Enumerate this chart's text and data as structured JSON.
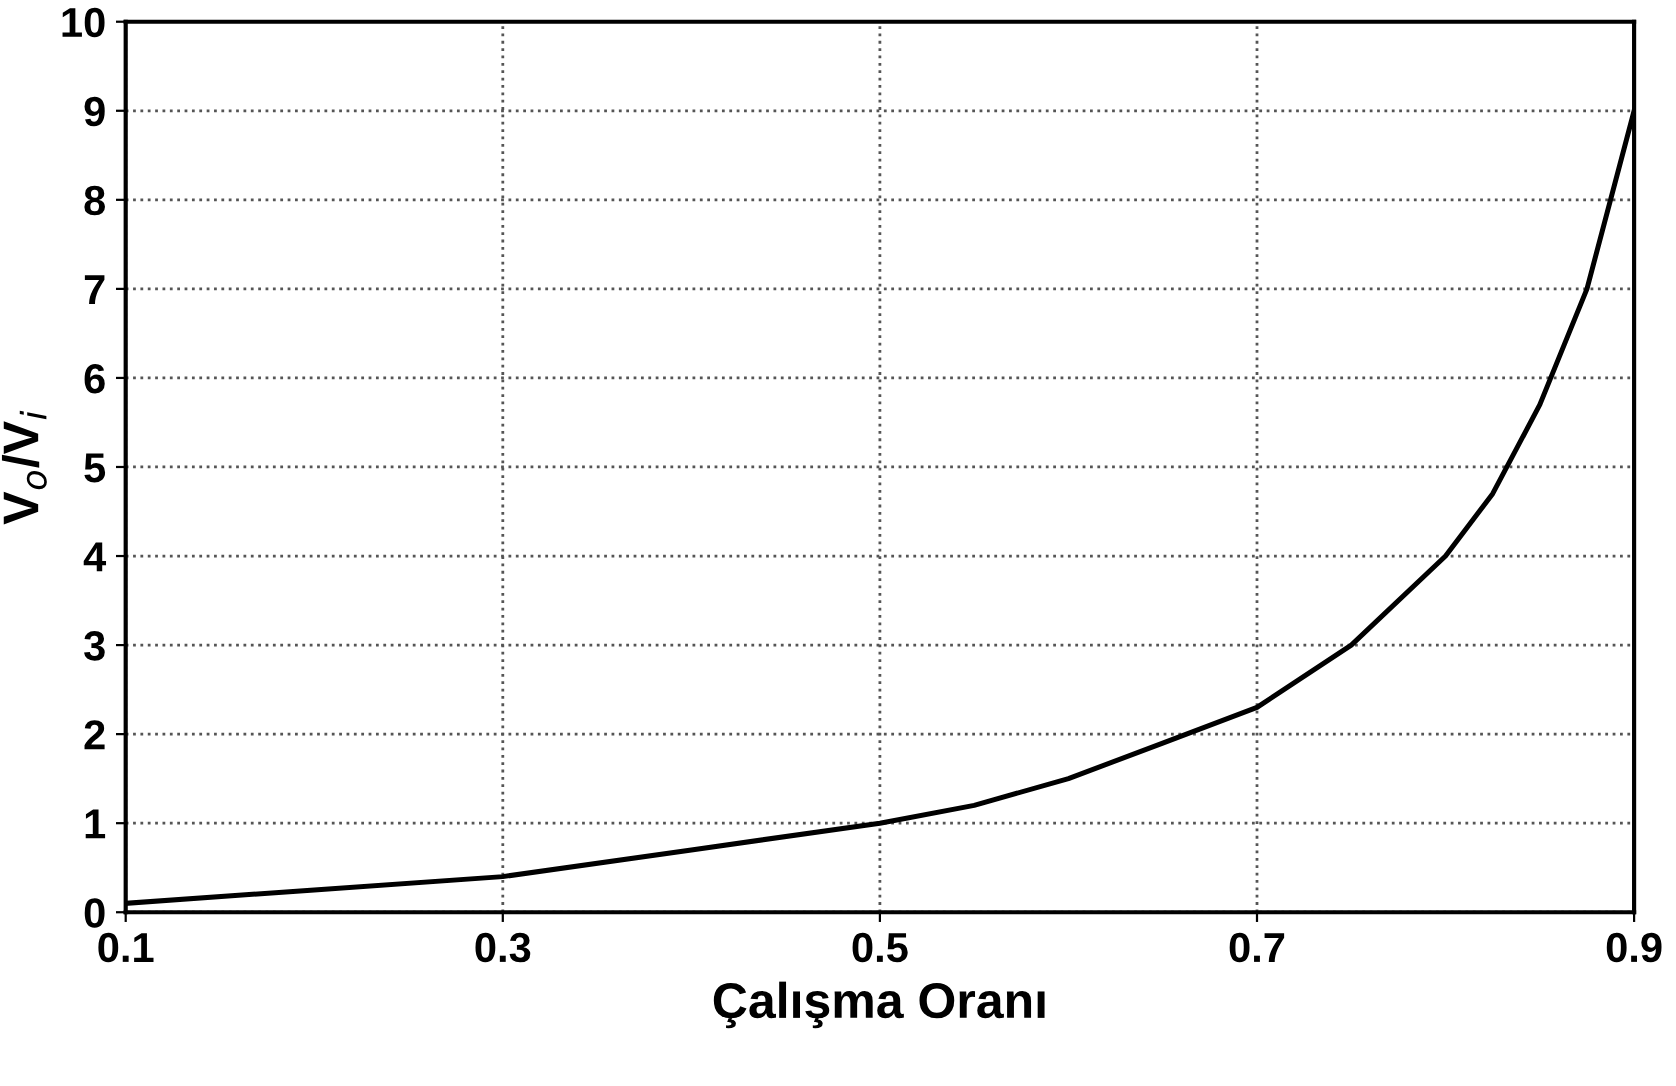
{
  "chart_data": {
    "type": "line",
    "xlabel": "Çalışma Oranı",
    "ylabel": "V$_{o}$/V$_{i}$",
    "x": [
      0.1,
      0.2,
      0.3,
      0.4,
      0.5,
      0.55,
      0.6,
      0.65,
      0.7,
      0.75,
      0.8,
      0.825,
      0.85,
      0.875,
      0.9
    ],
    "series": [
      {
        "color": "#000000",
        "values": [
          0.1,
          0.25,
          0.4,
          0.7,
          1,
          1.2,
          1.5,
          1.9,
          2.3,
          3,
          4,
          4.7,
          5.7,
          7,
          9
        ]
      }
    ],
    "xlim": [
      0.1,
      0.9
    ],
    "ylim": [
      0,
      10
    ],
    "xticks": [
      0.1,
      0.3,
      0.5,
      0.7,
      0.9
    ],
    "yticks": [
      0,
      1,
      2,
      3,
      4,
      5,
      6,
      7,
      8,
      9,
      10
    ],
    "grid": true,
    "legend": false,
    "marker": "none",
    "line_style": "solid"
  }
}
